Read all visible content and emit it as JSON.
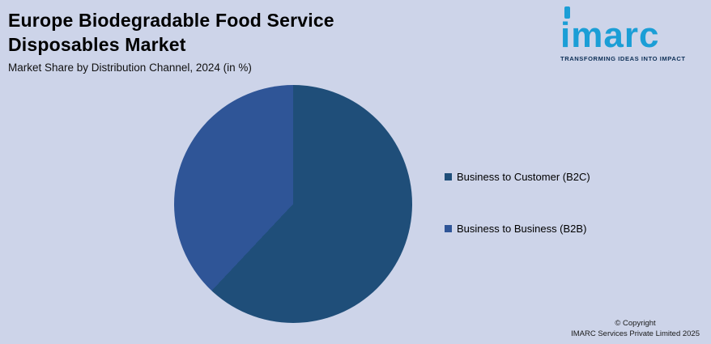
{
  "header": {
    "title_line1": "Europe Biodegradable Food Service",
    "title_line2": "Disposables Market",
    "subtitle": "Market Share by Distribution Channel, 2024 (in %)"
  },
  "logo": {
    "wordmark": "imarc",
    "tagline": "TRANSFORMING IDEAS INTO IMPACT"
  },
  "footer": {
    "copyright_line1": "© Copyright",
    "copyright_line2": "IMARC Services Private Limited 2025"
  },
  "colors": {
    "background": "#cdd4e9",
    "b2c_slice": "#1f4e79",
    "b2b_slice": "#2f5597",
    "logo_blue": "#1b9ed6",
    "tagline_navy": "#0d2f56"
  },
  "chart_data": {
    "type": "pie",
    "title": "Market Share by Distribution Channel, 2024 (in %)",
    "labels": [
      "Business to Customer (B2C)",
      "Business to Business (B2B)"
    ],
    "values": [
      62,
      38
    ],
    "colors": [
      "#1f4e79",
      "#2f5597"
    ],
    "start_angle_deg": 0,
    "direction": "clockwise",
    "legend_position": "right",
    "data_labels_shown": false
  }
}
